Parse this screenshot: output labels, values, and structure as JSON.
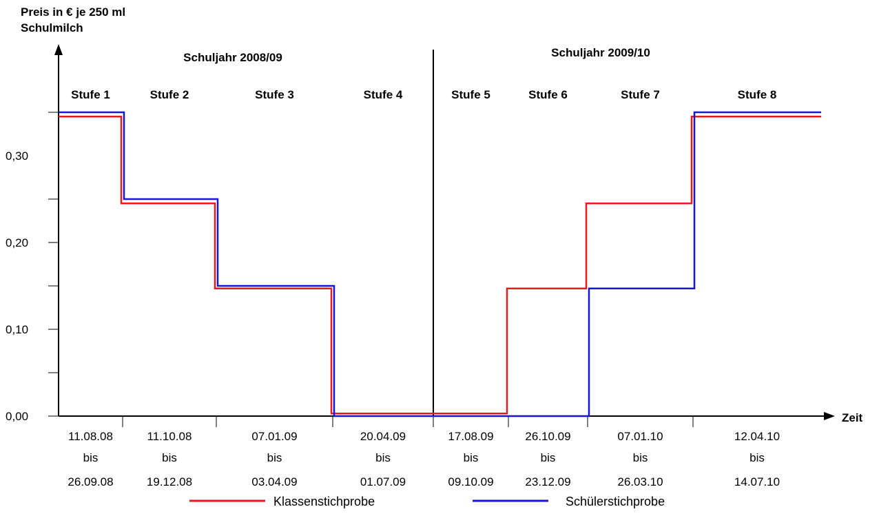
{
  "chart_data": {
    "type": "line",
    "step": true,
    "ylabel_line1": "Preis in € je 250 ml",
    "ylabel_line2": "Schulmilch",
    "xlabel": "Zeit",
    "ylim": [
      0,
      0.35
    ],
    "y_ticks": [
      "0,00",
      "0,10",
      "0,20",
      "0,30"
    ],
    "school_years": [
      "Schuljahr 2008/09",
      "Schuljahr 2009/10"
    ],
    "stages": [
      "Stufe 1",
      "Stufe 2",
      "Stufe 3",
      "Stufe 4",
      "Stufe 5",
      "Stufe 6",
      "Stufe 7",
      "Stufe 8"
    ],
    "periods": [
      {
        "from": "11.08.08",
        "bis": "bis",
        "to": "26.09.08"
      },
      {
        "from": "11.10.08",
        "bis": "bis",
        "to": "19.12.08"
      },
      {
        "from": "07.01.09",
        "bis": "bis",
        "to": "03.04.09"
      },
      {
        "from": "20.04.09",
        "bis": "bis",
        "to": "01.07.09"
      },
      {
        "from": "17.08.09",
        "bis": "bis",
        "to": "09.10.09"
      },
      {
        "from": "26.10.09",
        "bis": "bis",
        "to": "23.12.09"
      },
      {
        "from": "07.01.10",
        "bis": "bis",
        "to": "26.03.10"
      },
      {
        "from": "12.04.10",
        "bis": "bis",
        "to": "14.07.10"
      }
    ],
    "series": [
      {
        "name": "Klassenstichprobe",
        "color": "#e8191c",
        "values": [
          0.345,
          0.245,
          0.147,
          0.003,
          0.003,
          0.147,
          0.245,
          0.345
        ]
      },
      {
        "name": "Schülerstichprobe",
        "color": "#1515d8",
        "values": [
          0.35,
          0.25,
          0.15,
          0.0,
          0.0,
          0.0,
          0.147,
          0.35
        ]
      }
    ],
    "legend_position": "bottom",
    "grid": false
  }
}
